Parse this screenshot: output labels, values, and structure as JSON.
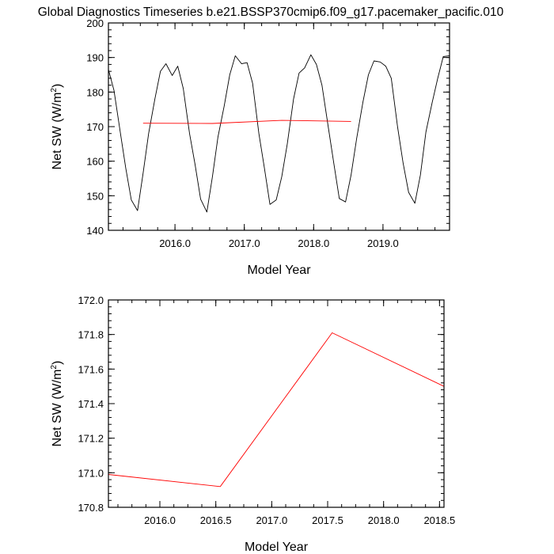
{
  "title": "Global Diagnostics Timeseries b.e21.BSSP370cmip6.f09_g17.pacemaker_pacific.010",
  "colors": {
    "monthly": "#000000",
    "annual": "#ff0000",
    "axis": "#000000"
  },
  "chart_data": [
    {
      "type": "line",
      "xlabel": "Model Year",
      "ylabel_main": "Net SW (W/m",
      "ylabel_sup": "2",
      "ylabel_close": ")",
      "xlim": [
        2015.04,
        2019.96
      ],
      "ylim": [
        140,
        200
      ],
      "xticks": [
        2016.0,
        2017.0,
        2018.0,
        2019.0
      ],
      "xtick_labels": [
        "2016.0",
        "2017.0",
        "2018.0",
        "2019.0"
      ],
      "yticks": [
        140,
        150,
        160,
        170,
        180,
        190,
        200
      ],
      "ytick_labels": [
        "140",
        "150",
        "160",
        "170",
        "180",
        "190",
        "200"
      ],
      "series": [
        {
          "color": "#000000",
          "x": [
            2015.04,
            2015.12,
            2015.21,
            2015.29,
            2015.37,
            2015.46,
            2015.54,
            2015.62,
            2015.71,
            2015.79,
            2015.87,
            2015.96,
            2016.04,
            2016.12,
            2016.21,
            2016.29,
            2016.37,
            2016.46,
            2016.54,
            2016.62,
            2016.71,
            2016.79,
            2016.87,
            2016.96,
            2017.04,
            2017.12,
            2017.21,
            2017.29,
            2017.37,
            2017.46,
            2017.54,
            2017.62,
            2017.71,
            2017.79,
            2017.87,
            2017.96,
            2018.04,
            2018.12,
            2018.21,
            2018.29,
            2018.37,
            2018.46,
            2018.54,
            2018.62,
            2018.71,
            2018.79,
            2018.87,
            2018.96,
            2019.04,
            2019.12,
            2019.21,
            2019.29,
            2019.37,
            2019.46,
            2019.54,
            2019.62,
            2019.71,
            2019.79,
            2019.87,
            2019.96
          ],
          "y": [
            186.5,
            180.5,
            168.5,
            158.0,
            148.8,
            145.7,
            156.5,
            168.0,
            178.0,
            186.0,
            188.2,
            184.8,
            187.5,
            181.0,
            168.0,
            159.0,
            149.0,
            145.3,
            155.5,
            167.0,
            176.0,
            185.0,
            190.5,
            188.2,
            188.5,
            182.5,
            168.0,
            158.0,
            147.5,
            148.8,
            155.5,
            165.0,
            178.0,
            185.5,
            187.0,
            190.8,
            188.0,
            182.0,
            170.0,
            159.5,
            149.2,
            148.2,
            156.0,
            166.5,
            177.0,
            185.0,
            189.0,
            188.7,
            187.5,
            184.0,
            170.0,
            159.5,
            151.0,
            147.8,
            156.0,
            168.5,
            177.0,
            184.0,
            190.3,
            190.5
          ]
        },
        {
          "color": "#ff0000",
          "x": [
            2015.54,
            2016.54,
            2017.54,
            2018.54
          ],
          "y": [
            170.99,
            170.92,
            171.81,
            171.5
          ]
        }
      ]
    },
    {
      "type": "line",
      "xlabel": "Model Year",
      "ylabel_main": "Net SW (W/m",
      "ylabel_sup": "2",
      "ylabel_close": ")",
      "xlim": [
        2015.54,
        2018.54
      ],
      "ylim": [
        170.8,
        172.0
      ],
      "xticks": [
        2016.0,
        2016.5,
        2017.0,
        2017.5,
        2018.0,
        2018.5
      ],
      "xtick_labels": [
        "2016.0",
        "2016.5",
        "2017.0",
        "2017.5",
        "2018.0",
        "2018.5"
      ],
      "yticks": [
        170.8,
        171.0,
        171.2,
        171.4,
        171.6,
        171.8,
        172.0
      ],
      "ytick_labels": [
        "170.8",
        "171.0",
        "171.2",
        "171.4",
        "171.6",
        "171.8",
        "172.0"
      ],
      "series": [
        {
          "color": "#ff0000",
          "x": [
            2015.54,
            2016.54,
            2017.54,
            2018.54
          ],
          "y": [
            170.99,
            170.92,
            171.81,
            171.5
          ]
        }
      ]
    }
  ]
}
